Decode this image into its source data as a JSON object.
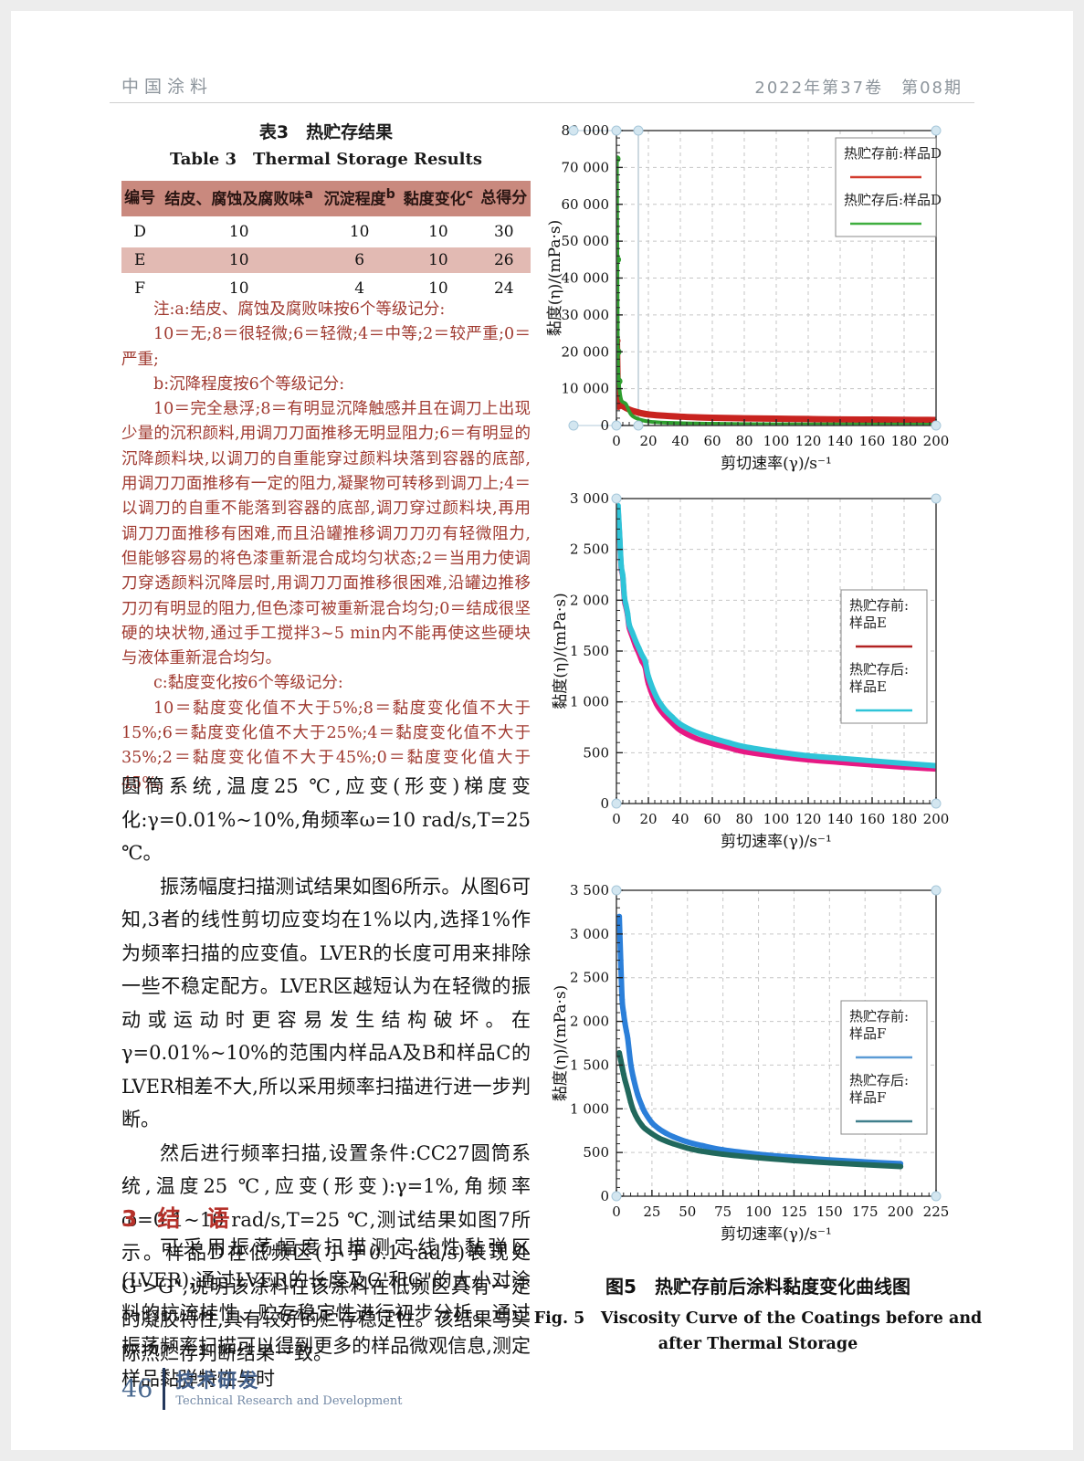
{
  "header": {
    "journal": "中国涂料",
    "issue": "2022年第37卷　第08期"
  },
  "table": {
    "title_zh": "表3　热贮存结果",
    "title_en": "Table 3　Thermal Storage Results",
    "columns": [
      {
        "label": "编号",
        "sup": ""
      },
      {
        "label": "结皮、腐蚀及腐败味",
        "sup": "a"
      },
      {
        "label": "沉淀程度",
        "sup": "b"
      },
      {
        "label": "黏度变化",
        "sup": "c"
      },
      {
        "label": "总得分",
        "sup": ""
      }
    ],
    "rows": [
      [
        "D",
        "10",
        "10",
        "10",
        "30"
      ],
      [
        "E",
        "10",
        "6",
        "10",
        "26"
      ],
      [
        "F",
        "10",
        "4",
        "10",
        "24"
      ]
    ]
  },
  "notes": {
    "paragraphs": [
      "注:a:结皮、腐蚀及腐败味按6个等级记分:",
      "10＝无;8＝很轻微;6＝轻微;4＝中等;2＝较严重;0＝严重;",
      "b:沉降程度按6个等级记分:",
      "10＝完全悬浮;8＝有明显沉降触感并且在调刀上出现少量的沉积颜料,用调刀刀面推移无明显阻力;6＝有明显的沉降颜料块,以调刀的自重能穿过颜料块落到容器的底部,用调刀刀面推移有一定的阻力,凝聚物可转移到调刀上;4＝以调刀的自重不能落到容器的底部,调刀穿过颜料块,再用调刀刀面推移有困难,而且沿罐推移调刀刀刃有轻微阻力,但能够容易的将色漆重新混合成均匀状态;2＝当用力使调刀穿透颜料沉降层时,用调刀刀面推移很困难,沿罐边推移刀刃有明显的阻力,但色漆可被重新混合均匀;0＝结成很坚硬的块状物,通过手工搅拌3~5 min内不能再使这些硬块与液体重新混合均匀。",
      "c:黏度变化按6个等级记分:",
      "10＝黏度变化值不大于5%;8＝黏度变化值不大于15%;6＝黏度变化值不大于25%;4＝黏度变化值不大于35%;2＝黏度变化值不大于45%;0＝黏度变化值大于45%。"
    ]
  },
  "body": {
    "paragraphs": [
      {
        "indent": false,
        "text": "圆筒系统,温度25 ℃,应变(形变)梯度变化:γ=0.01%~10%,角频率ω=10 rad/s,T=25 ℃。"
      },
      {
        "indent": true,
        "text": "振荡幅度扫描测试结果如图6所示。从图6可知,3者的线性剪切应变均在1%以内,选择1%作为频率扫描的应变值。LVER的长度可用来排除一些不稳定配方。LVER区越短认为在轻微的振动或运动时更容易发生结构破坏。在γ=0.01%~10%的范围内样品A及B和样品C的LVER相差不大,所以采用频率扫描进行进一步判断。"
      },
      {
        "indent": true,
        "text": "然后进行频率扫描,设置条件:CC27圆筒系统,温度25 ℃,应变(形变):γ=1%,角频率ω=0.1~10 rad/s,T=25 ℃,测试结果如图7所示。样品D在低频区(小于0.1 rad/s)表现处G'>G\",说明该涂料在该涂料在低频区具有一定的凝胶特性,具有较好的贮存稳定性。该结果与实际热贮存判断结果一致。"
      }
    ]
  },
  "section": {
    "number": "3",
    "title": "结　语"
  },
  "conclusion": "可采用振荡幅度扫描测定线性黏弹区(LVER),通过LVER的长度及G'和G\"的大小对涂料的抗流挂性、贮存稳定性进行初步分析。通过振荡频率扫描可以得到更多的样品微观信息,测定样品黏弹特性与时",
  "figure": {
    "caption_zh": "图5　热贮存前后涂料黏度变化曲线图",
    "caption_en": "Fig. 5　Viscosity Curve of the Coatings before and after Thermal Storage"
  },
  "footer": {
    "page_number": "46",
    "section_zh": "技术研发",
    "section_en": "Technical Research and Development"
  },
  "chart_data": [
    {
      "id": "sample-D",
      "type": "line",
      "xlabel": "剪切速率(γ)/s⁻¹",
      "ylabel": "黏度(η)/(mPa·s)",
      "xlim": [
        0,
        200
      ],
      "xtick_step": 20,
      "ylim": [
        0,
        80000
      ],
      "ytick_step": 10000,
      "grid": "dashed",
      "legend_position": "inside-top-right",
      "legend": [
        {
          "lines": [
            "热贮存前:样品D"
          ],
          "color": "#d23b2e"
        },
        {
          "lines": [
            "热贮存后:样品D"
          ],
          "color": "#3fae3f"
        }
      ],
      "series": [
        {
          "name": "热贮存前:样品D",
          "color": "#c8231f",
          "line_width": 7,
          "dots": "high",
          "points": [
            [
              0.3,
              23000
            ],
            [
              1,
              6500
            ],
            [
              2,
              5800
            ],
            [
              5,
              5000
            ],
            [
              10,
              4000
            ],
            [
              20,
              3000
            ],
            [
              40,
              2400
            ],
            [
              60,
              2100
            ],
            [
              80,
              1950
            ],
            [
              100,
              1850
            ],
            [
              120,
              1750
            ],
            [
              140,
              1650
            ],
            [
              160,
              1600
            ],
            [
              180,
              1550
            ],
            [
              200,
              1500
            ]
          ]
        },
        {
          "name": "热贮存后:样品D",
          "color": "#2f9e2f",
          "line_width": 4,
          "dots": "high",
          "points": [
            [
              0.3,
              72300
            ],
            [
              0.6,
              45000
            ],
            [
              0.9,
              20000
            ],
            [
              1.5,
              12000
            ],
            [
              3,
              7000
            ],
            [
              6,
              5800
            ],
            [
              10,
              2600
            ],
            [
              20,
              1100
            ],
            [
              40,
              650
            ],
            [
              60,
              480
            ],
            [
              80,
              400
            ],
            [
              100,
              350
            ],
            [
              130,
              310
            ],
            [
              160,
              280
            ],
            [
              200,
              260
            ]
          ]
        }
      ]
    },
    {
      "id": "sample-E",
      "type": "line",
      "xlabel": "剪切速率(γ)/s⁻¹",
      "ylabel": "黏度(η)/(mPa·s)",
      "xlim": [
        0,
        200
      ],
      "xtick_step": 20,
      "ylim": [
        0,
        3000
      ],
      "ytick_step": 500,
      "grid": "dashed",
      "legend_position": "inside-right",
      "legend": [
        {
          "lines": [
            "热贮存前:",
            "样品E"
          ],
          "color": "#b22222"
        },
        {
          "lines": [
            "热贮存后:",
            "样品E"
          ],
          "color": "#2fc4d8"
        }
      ],
      "series": [
        {
          "name": "热贮存前:样品E",
          "color": "#e61984",
          "line_width": 6,
          "dots": "all",
          "points": [
            [
              1,
              2900
            ],
            [
              2,
              2620
            ],
            [
              3,
              2320
            ],
            [
              4,
              2230
            ],
            [
              5,
              2000
            ],
            [
              6,
              1930
            ],
            [
              7,
              1850
            ],
            [
              8,
              1730
            ],
            [
              10,
              1640
            ],
            [
              12,
              1550
            ],
            [
              14,
              1480
            ],
            [
              16,
              1400
            ],
            [
              18,
              1340
            ],
            [
              20,
              1180
            ],
            [
              25,
              980
            ],
            [
              30,
              870
            ],
            [
              35,
              790
            ],
            [
              40,
              720
            ],
            [
              50,
              640
            ],
            [
              60,
              590
            ],
            [
              70,
              550
            ],
            [
              80,
              510
            ],
            [
              100,
              465
            ],
            [
              120,
              430
            ],
            [
              140,
              405
            ],
            [
              160,
              380
            ],
            [
              180,
              358
            ],
            [
              200,
              340
            ]
          ]
        },
        {
          "name": "热贮存后:样品E",
          "color": "#2fc4d8",
          "line_width": 6,
          "dots": "all",
          "points": [
            [
              1,
              2930
            ],
            [
              2,
              2640
            ],
            [
              3,
              2340
            ],
            [
              4,
              2240
            ],
            [
              5,
              2030
            ],
            [
              6,
              1950
            ],
            [
              7,
              1870
            ],
            [
              8,
              1760
            ],
            [
              10,
              1680
            ],
            [
              12,
              1600
            ],
            [
              14,
              1530
            ],
            [
              16,
              1460
            ],
            [
              18,
              1400
            ],
            [
              20,
              1250
            ],
            [
              25,
              1050
            ],
            [
              30,
              930
            ],
            [
              35,
              850
            ],
            [
              40,
              780
            ],
            [
              50,
              700
            ],
            [
              60,
              645
            ],
            [
              70,
              600
            ],
            [
              80,
              560
            ],
            [
              100,
              510
            ],
            [
              120,
              470
            ],
            [
              140,
              445
            ],
            [
              160,
              420
            ],
            [
              180,
              395
            ],
            [
              200,
              372
            ]
          ]
        }
      ]
    },
    {
      "id": "sample-F",
      "type": "line",
      "xlabel": "剪切速率(γ)/s⁻¹",
      "ylabel": "黏度(η)/(mPa·s)",
      "xlim": [
        0,
        225
      ],
      "xtick_step": 25,
      "ylim": [
        0,
        3500
      ],
      "ytick_step": 500,
      "grid": "dashed",
      "legend_position": "inside-right",
      "legend": [
        {
          "lines": [
            "热贮存前:",
            "样品F"
          ],
          "color": "#5b9bd5"
        },
        {
          "lines": [
            "热贮存后:",
            "样品F"
          ],
          "color": "#3f7f8c"
        }
      ],
      "series": [
        {
          "name": "热贮存前:样品F",
          "color": "#2b7fd9",
          "line_width": 6,
          "dots": "all",
          "points": [
            [
              2,
              3200
            ],
            [
              3,
              2700
            ],
            [
              4,
              2250
            ],
            [
              5,
              2100
            ],
            [
              6,
              1980
            ],
            [
              7,
              1890
            ],
            [
              8,
              1800
            ],
            [
              10,
              1520
            ],
            [
              12,
              1350
            ],
            [
              15,
              1160
            ],
            [
              18,
              1030
            ],
            [
              20,
              960
            ],
            [
              25,
              840
            ],
            [
              30,
              770
            ],
            [
              35,
              720
            ],
            [
              40,
              680
            ],
            [
              50,
              620
            ],
            [
              60,
              580
            ],
            [
              75,
              530
            ],
            [
              100,
              480
            ],
            [
              125,
              445
            ],
            [
              150,
              415
            ],
            [
              175,
              392
            ],
            [
              200,
              372
            ]
          ]
        },
        {
          "name": "热贮存后:样品F",
          "color": "#21685c",
          "line_width": 6,
          "dots": "all",
          "points": [
            [
              2,
              1640
            ],
            [
              3,
              1560
            ],
            [
              4,
              1480
            ],
            [
              5,
              1400
            ],
            [
              6,
              1330
            ],
            [
              8,
              1210
            ],
            [
              10,
              1080
            ],
            [
              12,
              980
            ],
            [
              15,
              880
            ],
            [
              18,
              810
            ],
            [
              20,
              775
            ],
            [
              25,
              715
            ],
            [
              30,
              665
            ],
            [
              35,
              630
            ],
            [
              40,
              600
            ],
            [
              50,
              550
            ],
            [
              60,
              515
            ],
            [
              75,
              480
            ],
            [
              100,
              440
            ],
            [
              125,
              408
            ],
            [
              150,
              382
            ],
            [
              175,
              360
            ],
            [
              200,
              340
            ]
          ]
        }
      ]
    }
  ]
}
